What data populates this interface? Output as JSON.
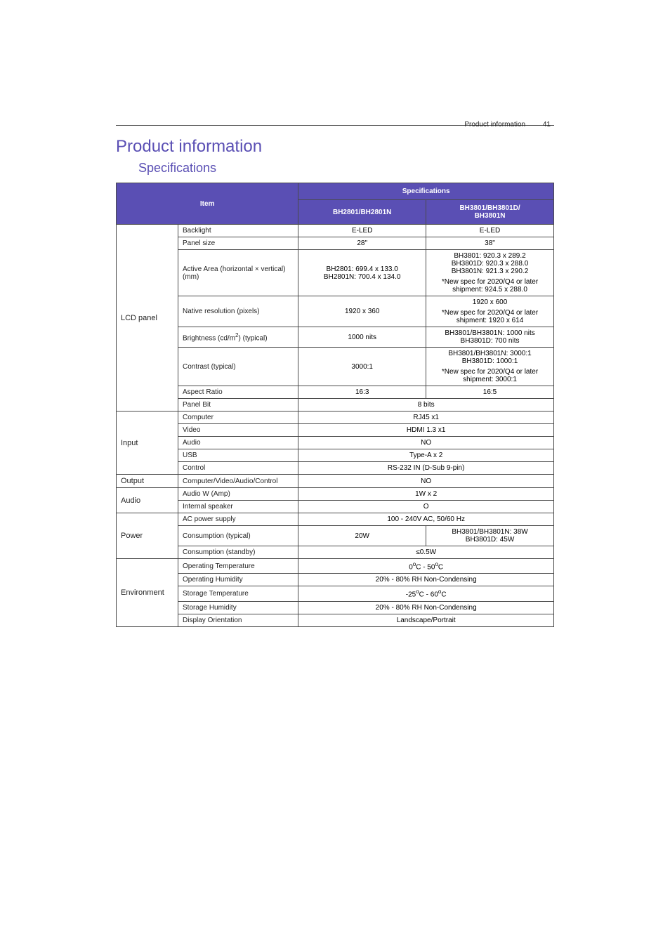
{
  "header": {
    "running_header": "Product information",
    "page_number": "41"
  },
  "titles": {
    "h1": "Product information",
    "h2": "Specifications"
  },
  "colors": {
    "accent": "#5a4fb4",
    "text": "#000000",
    "border": "#4a4a4a",
    "background": "#ffffff"
  },
  "table": {
    "head": {
      "item": "Item",
      "spec": "Specifications",
      "col_a": "BH2801/BH2801N",
      "col_b_line1": "BH3801/BH3801D/",
      "col_b_line2": "BH3801N"
    },
    "lcd": {
      "category": "LCD panel",
      "backlight": {
        "label": "Backlight",
        "a": "E-LED",
        "b": "E-LED"
      },
      "panel_size": {
        "label": "Panel size",
        "a": "28\"",
        "b": "38\""
      },
      "active_area": {
        "label": "Active Area (horizontal × vertical)(mm)",
        "a": "BH2801: 699.4 x 133.0\nBH2801N: 700.4 x 134.0",
        "b_main": "BH3801: 920.3 x 289.2\nBH3801D: 920.3 x 288.0\nBH3801N: 921.3 x 290.2",
        "b_note": "*New spec for 2020/Q4 or later shipment: 924.5 x 288.0"
      },
      "native_res": {
        "label": "Native resolution (pixels)",
        "a": "1920 x 360",
        "b_main": "1920 x 600",
        "b_note": "*New spec for 2020/Q4 or later shipment: 1920 x 614"
      },
      "brightness": {
        "label_pre": "Brightness (cd/m",
        "label_sup": "2",
        "label_post": ") (typical)",
        "a": "1000 nits",
        "b": "BH3801/BH3801N: 1000 nits\nBH3801D: 700 nits"
      },
      "contrast": {
        "label": "Contrast (typical)",
        "a": "3000:1",
        "b_main": "BH3801/BH3801N: 3000:1\nBH3801D: 1000:1",
        "b_note": "*New spec for 2020/Q4 or later shipment: 3000:1"
      },
      "aspect": {
        "label": "Aspect Ratio",
        "a": "16:3",
        "b": "16:5"
      },
      "panel_bit": {
        "label": "Panel Bit",
        "both": "8 bits"
      }
    },
    "input": {
      "category": "Input",
      "computer": {
        "label": "Computer",
        "both": "RJ45 x1"
      },
      "video": {
        "label": "Video",
        "both": "HDMI 1.3 x1"
      },
      "audio": {
        "label": "Audio",
        "both": "NO"
      },
      "usb": {
        "label": "USB",
        "both": "Type-A x 2"
      },
      "control": {
        "label": "Control",
        "both": "RS-232 IN (D-Sub 9-pin)"
      }
    },
    "output": {
      "category": "Output",
      "row": {
        "label": "Computer/Video/Audio/Control",
        "both": "NO"
      }
    },
    "audio": {
      "category": "Audio",
      "amp": {
        "label": "Audio W (Amp)",
        "both": "1W x 2"
      },
      "speaker": {
        "label": "Internal speaker",
        "both": "O"
      }
    },
    "power": {
      "category": "Power",
      "ac": {
        "label": "AC power supply",
        "both": "100 - 240V AC, 50/60 Hz"
      },
      "typical": {
        "label": "Consumption (typical)",
        "a": "20W",
        "b": "BH3801/BH3801N: 38W\nBH3801D: 45W"
      },
      "standby": {
        "label": "Consumption (standby)",
        "both": "≤0.5W"
      }
    },
    "env": {
      "category": "Environment",
      "op_temp": {
        "label": "Operating Temperature",
        "pre1": "0",
        "deg": "o",
        "c1": "C - 50",
        "c2": "C"
      },
      "op_hum": {
        "label": "Operating Humidity",
        "both": "20% - 80% RH Non-Condensing"
      },
      "st_temp": {
        "label": "Storage Temperature",
        "pre1": "-25",
        "c1": "C - 60",
        "c2": "C"
      },
      "st_hum": {
        "label": "Storage Humidity",
        "both": "20% - 80% RH Non-Condensing"
      },
      "orient": {
        "label": "Display Orientation",
        "both": "Landscape/Portrait"
      }
    }
  }
}
